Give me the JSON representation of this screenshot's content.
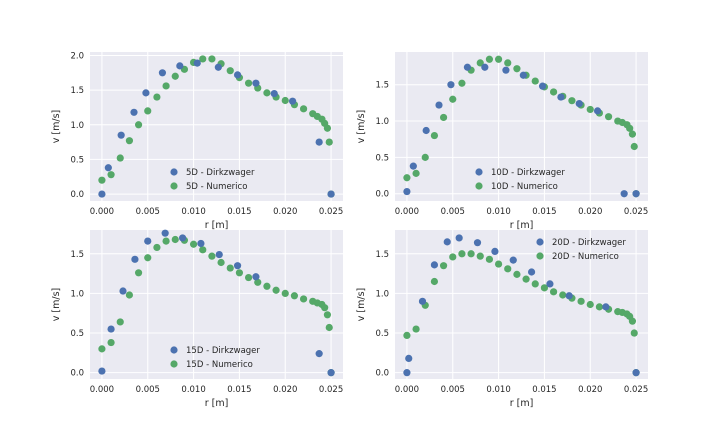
{
  "colors": {
    "dirkzwager": "#4c72b0",
    "numerico": "#55a868",
    "axes_bg": "#eaeaf2",
    "grid": "#ffffff"
  },
  "chart_data": [
    {
      "type": "scatter",
      "xlabel": "r [m]",
      "ylabel": "v [m/s]",
      "xlim": [
        -0.0013,
        0.0263
      ],
      "ylim": [
        -0.1,
        2.05
      ],
      "xticks": [
        "0.000",
        "0.005",
        "0.010",
        "0.015",
        "0.020",
        "0.025"
      ],
      "yticks": [
        "0.0",
        "0.5",
        "1.0",
        "1.5",
        "2.0"
      ],
      "grid": true,
      "legend": "lower-center",
      "series": [
        {
          "name": "5D - Dirkzwager",
          "color_key": "dirkzwager",
          "x": [
            0.0,
            0.0007,
            0.0021,
            0.0035,
            0.0048,
            0.0066,
            0.0085,
            0.0104,
            0.0127,
            0.0148,
            0.0168,
            0.0188,
            0.0208,
            0.0237,
            0.025
          ],
          "y": [
            0.0,
            0.38,
            0.85,
            1.18,
            1.46,
            1.75,
            1.85,
            1.89,
            1.83,
            1.72,
            1.6,
            1.45,
            1.34,
            0.75,
            0.0
          ]
        },
        {
          "name": "5D - Numerico",
          "color_key": "numerico",
          "x": [
            0.0,
            0.001,
            0.002,
            0.003,
            0.004,
            0.005,
            0.006,
            0.007,
            0.008,
            0.009,
            0.01,
            0.011,
            0.012,
            0.013,
            0.014,
            0.015,
            0.016,
            0.017,
            0.018,
            0.019,
            0.02,
            0.021,
            0.022,
            0.023,
            0.0235,
            0.024,
            0.0243,
            0.0246,
            0.0248,
            0.025
          ],
          "y": [
            0.2,
            0.28,
            0.52,
            0.77,
            1.0,
            1.2,
            1.4,
            1.56,
            1.7,
            1.8,
            1.9,
            1.95,
            1.95,
            1.88,
            1.78,
            1.68,
            1.6,
            1.53,
            1.46,
            1.4,
            1.35,
            1.29,
            1.23,
            1.16,
            1.12,
            1.08,
            1.02,
            0.95,
            0.75,
            0.0
          ]
        }
      ]
    },
    {
      "type": "scatter",
      "xlabel": "r [m]",
      "ylabel": "v [m/s]",
      "xlim": [
        -0.0013,
        0.0263
      ],
      "ylim": [
        -0.1,
        1.95
      ],
      "xticks": [
        "0.000",
        "0.005",
        "0.010",
        "0.015",
        "0.020",
        "0.025"
      ],
      "yticks": [
        "0.0",
        "0.5",
        "1.0",
        "1.5"
      ],
      "grid": true,
      "legend": "lower-center",
      "series": [
        {
          "name": "10D - Dirkzwager",
          "color_key": "dirkzwager",
          "x": [
            0.0,
            0.0007,
            0.0021,
            0.0035,
            0.0048,
            0.0066,
            0.0085,
            0.0108,
            0.0127,
            0.0148,
            0.0168,
            0.0188,
            0.0208,
            0.0237,
            0.025
          ],
          "y": [
            0.03,
            0.38,
            0.87,
            1.22,
            1.5,
            1.74,
            1.74,
            1.7,
            1.63,
            1.48,
            1.33,
            1.24,
            1.14,
            0.0,
            0.0
          ]
        },
        {
          "name": "10D - Numerico",
          "color_key": "numerico",
          "x": [
            0.0,
            0.001,
            0.002,
            0.003,
            0.004,
            0.005,
            0.006,
            0.007,
            0.008,
            0.009,
            0.01,
            0.011,
            0.012,
            0.013,
            0.014,
            0.015,
            0.016,
            0.017,
            0.018,
            0.019,
            0.02,
            0.021,
            0.022,
            0.023,
            0.0235,
            0.024,
            0.0243,
            0.0246,
            0.0248,
            0.025
          ],
          "y": [
            0.22,
            0.28,
            0.5,
            0.8,
            1.05,
            1.3,
            1.52,
            1.7,
            1.8,
            1.85,
            1.85,
            1.8,
            1.72,
            1.63,
            1.55,
            1.47,
            1.4,
            1.34,
            1.28,
            1.22,
            1.16,
            1.11,
            1.06,
            1.0,
            0.98,
            0.95,
            0.9,
            0.82,
            0.65,
            0.0
          ]
        }
      ]
    },
    {
      "type": "scatter",
      "xlabel": "r [m]",
      "ylabel": "v [m/s]",
      "xlim": [
        -0.0013,
        0.0263
      ],
      "ylim": [
        -0.08,
        1.8
      ],
      "xticks": [
        "0.000",
        "0.005",
        "0.010",
        "0.015",
        "0.020",
        "0.025"
      ],
      "yticks": [
        "0.0",
        "0.5",
        "1.0",
        "1.5"
      ],
      "grid": true,
      "legend": "lower-center",
      "series": [
        {
          "name": "15D - Dirkzwager",
          "color_key": "dirkzwager",
          "x": [
            0.0,
            0.001,
            0.0023,
            0.0036,
            0.005,
            0.0069,
            0.0088,
            0.0108,
            0.0128,
            0.0148,
            0.0168,
            0.0237,
            0.025
          ],
          "y": [
            0.02,
            0.55,
            1.03,
            1.43,
            1.66,
            1.76,
            1.7,
            1.63,
            1.49,
            1.35,
            1.21,
            0.24,
            0.0
          ]
        },
        {
          "name": "15D - Numerico",
          "color_key": "numerico",
          "x": [
            0.0,
            0.001,
            0.002,
            0.003,
            0.004,
            0.005,
            0.006,
            0.007,
            0.008,
            0.009,
            0.01,
            0.011,
            0.012,
            0.013,
            0.014,
            0.015,
            0.016,
            0.017,
            0.018,
            0.019,
            0.02,
            0.021,
            0.022,
            0.023,
            0.0235,
            0.024,
            0.0243,
            0.0246,
            0.0248,
            0.025
          ],
          "y": [
            0.3,
            0.38,
            0.64,
            0.98,
            1.26,
            1.45,
            1.58,
            1.66,
            1.68,
            1.67,
            1.62,
            1.55,
            1.47,
            1.39,
            1.32,
            1.26,
            1.2,
            1.14,
            1.09,
            1.04,
            1.0,
            0.97,
            0.93,
            0.9,
            0.88,
            0.86,
            0.82,
            0.73,
            0.57,
            0.0
          ]
        }
      ]
    },
    {
      "type": "scatter",
      "xlabel": "r [m]",
      "ylabel": "v [m/s]",
      "xlim": [
        -0.0013,
        0.0263
      ],
      "ylim": [
        -0.08,
        1.8
      ],
      "xticks": [
        "0.000",
        "0.005",
        "0.010",
        "0.015",
        "0.020",
        "0.025"
      ],
      "yticks": [
        "0.0",
        "0.5",
        "1.0",
        "1.5"
      ],
      "grid": true,
      "legend": "upper-right",
      "series": [
        {
          "name": "20D - Dirkzwager",
          "color_key": "dirkzwager",
          "x": [
            0.0,
            0.0002,
            0.0017,
            0.003,
            0.0044,
            0.0057,
            0.0077,
            0.0096,
            0.0116,
            0.0136,
            0.0156,
            0.0177,
            0.0217,
            0.025
          ],
          "y": [
            0.0,
            0.18,
            0.9,
            1.36,
            1.65,
            1.7,
            1.64,
            1.53,
            1.42,
            1.27,
            1.12,
            0.97,
            0.83,
            0.0
          ]
        },
        {
          "name": "20D - Numerico",
          "color_key": "numerico",
          "x": [
            0.0,
            0.001,
            0.002,
            0.003,
            0.004,
            0.005,
            0.006,
            0.007,
            0.008,
            0.009,
            0.01,
            0.011,
            0.012,
            0.013,
            0.014,
            0.015,
            0.016,
            0.017,
            0.018,
            0.019,
            0.02,
            0.021,
            0.022,
            0.023,
            0.0235,
            0.024,
            0.0243,
            0.0246,
            0.0248,
            0.025
          ],
          "y": [
            0.47,
            0.55,
            0.85,
            1.15,
            1.35,
            1.46,
            1.5,
            1.5,
            1.47,
            1.43,
            1.37,
            1.31,
            1.24,
            1.18,
            1.12,
            1.07,
            1.02,
            0.98,
            0.94,
            0.9,
            0.86,
            0.83,
            0.8,
            0.77,
            0.76,
            0.74,
            0.71,
            0.65,
            0.5,
            0.0
          ]
        }
      ]
    }
  ]
}
